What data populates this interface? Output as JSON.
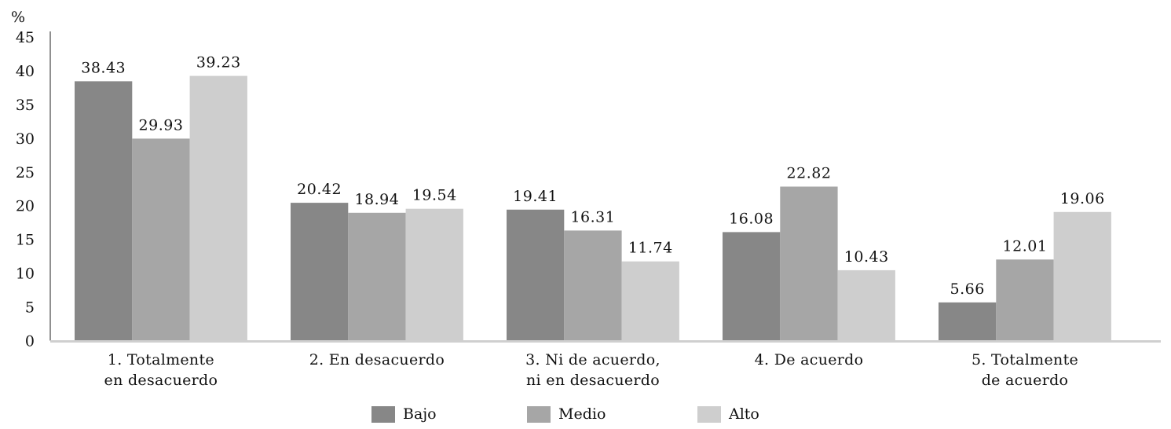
{
  "chart_data": {
    "type": "bar",
    "y_unit_label": "%",
    "categories": [
      [
        "1. Totalmente",
        "en desacuerdo"
      ],
      [
        "2. En desacuerdo"
      ],
      [
        "3. Ni de acuerdo,",
        "ni en desacuerdo"
      ],
      [
        "4. De acuerdo"
      ],
      [
        "5. Totalmente",
        "de acuerdo"
      ]
    ],
    "series": [
      {
        "name": "Bajo",
        "color": "#878787",
        "values": [
          38.43,
          20.42,
          19.41,
          16.08,
          5.66
        ]
      },
      {
        "name": "Medio",
        "color": "#a6a6a6",
        "values": [
          29.93,
          18.94,
          16.31,
          22.82,
          12.01
        ]
      },
      {
        "name": "Alto",
        "color": "#cecece",
        "values": [
          39.23,
          19.54,
          11.74,
          10.43,
          19.06
        ]
      }
    ],
    "y_ticks": [
      0,
      5,
      10,
      15,
      20,
      25,
      30,
      35,
      40,
      45
    ],
    "ylim": [
      0,
      45
    ],
    "grid": false,
    "legend_position": "bottom-center",
    "axis_color": "#cfcfcf"
  }
}
